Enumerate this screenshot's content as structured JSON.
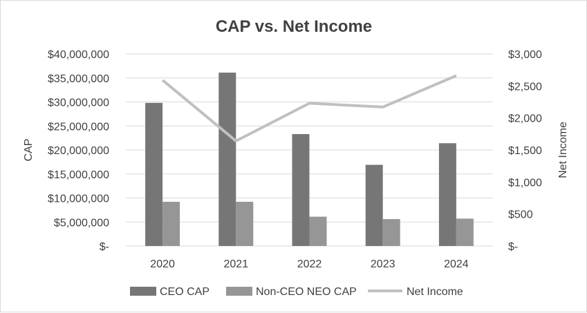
{
  "chart_data": {
    "type": "bar",
    "title": "CAP vs. Net Income",
    "categories": [
      "2020",
      "2021",
      "2022",
      "2023",
      "2024"
    ],
    "ylabel": "CAP",
    "y2label": "Net Income",
    "ylim": [
      0,
      40000000
    ],
    "y2lim": [
      0,
      3000
    ],
    "yticks": [
      "$-",
      "$5,000,000",
      "$10,000,000",
      "$15,000,000",
      "$20,000,000",
      "$25,000,000",
      "$30,000,000",
      "$35,000,000",
      "$40,000,000"
    ],
    "y2ticks": [
      "$-",
      "$500",
      "$1,000",
      "$1,500",
      "$2,000",
      "$2,500",
      "$3,000"
    ],
    "series": [
      {
        "name": "CEO CAP",
        "type": "bar",
        "axis": "left",
        "color": "#767676",
        "values": [
          29800000,
          36100000,
          23300000,
          16900000,
          21400000
        ]
      },
      {
        "name": "Non-CEO NEO CAP",
        "type": "bar",
        "axis": "left",
        "color": "#969696",
        "values": [
          9200000,
          9200000,
          6100000,
          5600000,
          5700000
        ]
      },
      {
        "name": "Net Income",
        "type": "line",
        "axis": "right",
        "color": "#c0c0c0",
        "values": [
          2590,
          1640,
          2230,
          2170,
          2660
        ]
      }
    ],
    "grid": true,
    "legend": "bottom"
  }
}
